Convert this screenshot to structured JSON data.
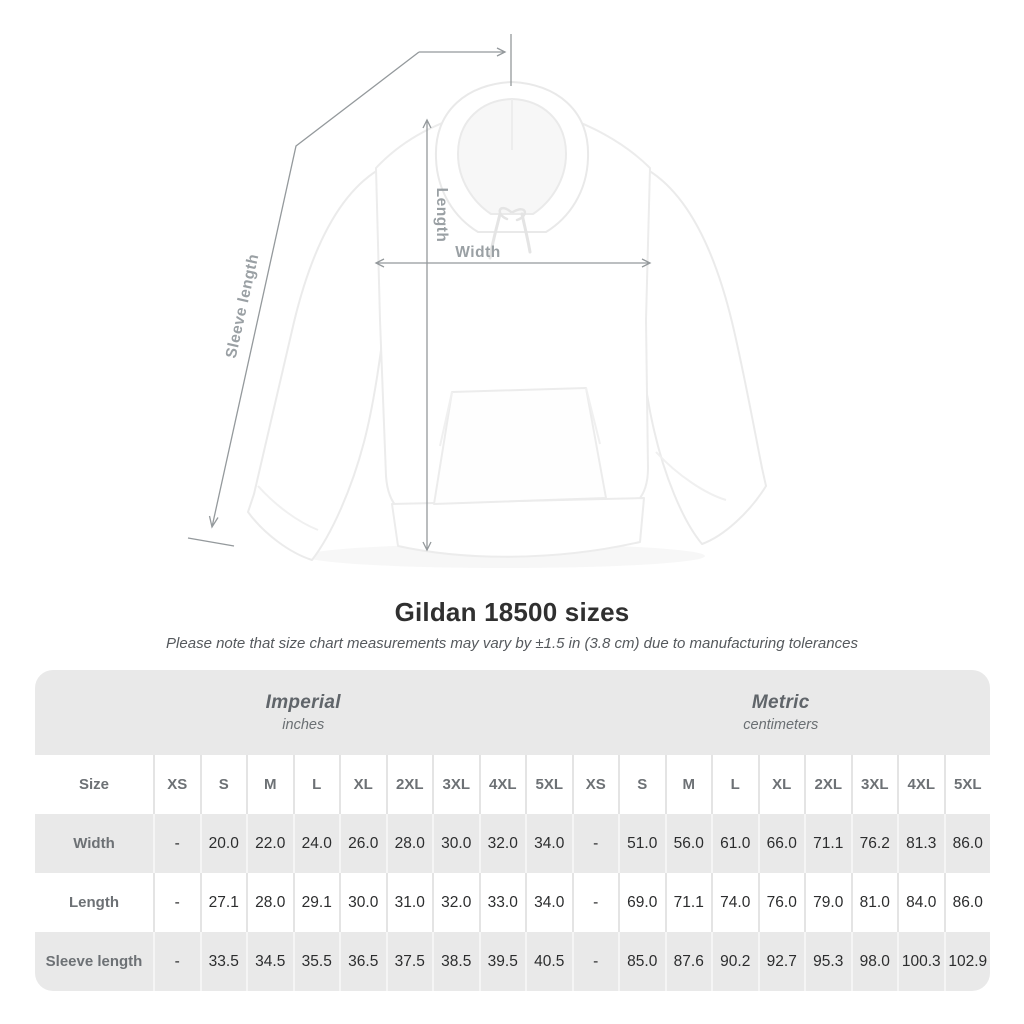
{
  "header": {
    "title": "Gildan 18500 sizes",
    "subtitle": "Please note that size chart measurements may vary by ±1.5 in (3.8 cm) due to manufacturing tolerances"
  },
  "diagram": {
    "measurements": {
      "width": "Width",
      "length": "Length",
      "sleeve_length": "Sleeve length"
    }
  },
  "chart_data": {
    "type": "table",
    "title": "Gildan 18500 sizes",
    "note": "Please note that size chart measurements may vary by ±1.5 in (3.8 cm) due to manufacturing tolerances",
    "column_groups": [
      {
        "label": "Imperial",
        "unit": "inches",
        "span": 10
      },
      {
        "label": "Metric",
        "unit": "centimeters",
        "span": 9
      }
    ],
    "columns": [
      "Size",
      "XS",
      "S",
      "M",
      "L",
      "XL",
      "2XL",
      "3XL",
      "4XL",
      "5XL",
      "XS",
      "S",
      "M",
      "L",
      "XL",
      "2XL",
      "3XL",
      "4XL",
      "5XL"
    ],
    "rows": [
      {
        "label": "Width",
        "imperial": [
          "-",
          "20.0",
          "22.0",
          "24.0",
          "26.0",
          "28.0",
          "30.0",
          "32.0",
          "34.0"
        ],
        "metric": [
          "-",
          "51.0",
          "56.0",
          "61.0",
          "66.0",
          "71.1",
          "76.2",
          "81.3",
          "86.0"
        ]
      },
      {
        "label": "Length",
        "imperial": [
          "-",
          "27.1",
          "28.0",
          "29.1",
          "30.0",
          "31.0",
          "32.0",
          "33.0",
          "34.0"
        ],
        "metric": [
          "-",
          "69.0",
          "71.1",
          "74.0",
          "76.0",
          "79.0",
          "81.0",
          "84.0",
          "86.0"
        ]
      },
      {
        "label": "Sleeve length",
        "imperial": [
          "-",
          "33.5",
          "34.5",
          "35.5",
          "36.5",
          "37.5",
          "38.5",
          "39.5",
          "40.5"
        ],
        "metric": [
          "-",
          "85.0",
          "87.6",
          "90.2",
          "92.7",
          "95.3",
          "98.0",
          "100.3",
          "102.9"
        ]
      }
    ]
  },
  "colors": {
    "table_band": "#e9e9e9",
    "row_alt": "#e9e9e9",
    "value_text": "#2c2d2e",
    "header_text": "#6d7175",
    "measure_line": "#94999c",
    "measure_label": "#9aa0a4"
  }
}
